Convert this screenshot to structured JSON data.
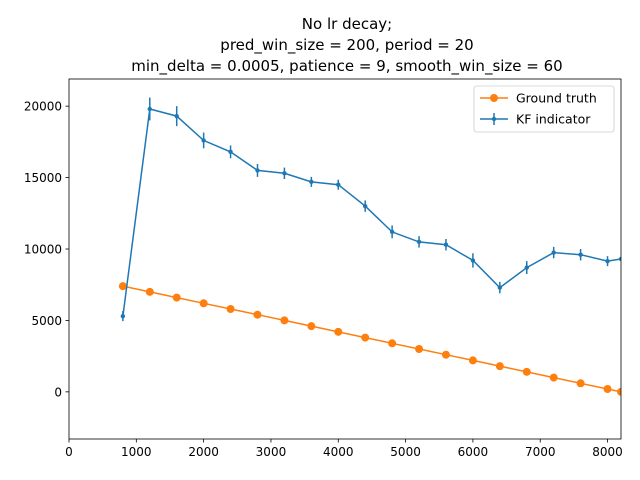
{
  "chart_data": {
    "type": "line",
    "title_lines": [
      "No lr decay;",
      "pred_win_size = 200, period = 20",
      "min_delta = 0.0005, patience = 9, smooth_win_size = 60"
    ],
    "xlabel": "",
    "ylabel": "",
    "xlim": [
      0,
      8200
    ],
    "ylim": [
      -3300,
      21900
    ],
    "xticks": [
      0,
      1000,
      2000,
      3000,
      4000,
      5000,
      6000,
      7000,
      8000
    ],
    "yticks": [
      0,
      5000,
      10000,
      15000,
      20000
    ],
    "grid": false,
    "legend_position": "top-right",
    "series": [
      {
        "name": "Ground truth",
        "color": "#ff7f0e",
        "marker": "circle",
        "x": [
          800,
          1200,
          1600,
          2000,
          2400,
          2800,
          3200,
          3600,
          4000,
          4400,
          4800,
          5200,
          5600,
          6000,
          6400,
          6800,
          7200,
          7600,
          8000,
          8200
        ],
        "y": [
          7400,
          7000,
          6600,
          6200,
          5800,
          5400,
          5000,
          4600,
          4200,
          3800,
          3400,
          3000,
          2600,
          2200,
          1800,
          1400,
          1000,
          600,
          200,
          0
        ]
      },
      {
        "name": "KF indicator",
        "color": "#1f77b4",
        "marker": "point",
        "x": [
          800,
          1200,
          1600,
          2000,
          2400,
          2800,
          3200,
          3600,
          4000,
          4400,
          4800,
          5200,
          5600,
          6000,
          6400,
          6800,
          7200,
          7600,
          8000,
          8200
        ],
        "y": [
          5300,
          19800,
          19300,
          17600,
          16800,
          15500,
          15300,
          14700,
          14500,
          13000,
          11200,
          10500,
          10300,
          9200,
          7300,
          8700,
          9750,
          9600,
          9150,
          9300
        ],
        "yerr": [
          350,
          800,
          700,
          550,
          450,
          450,
          400,
          350,
          350,
          400,
          450,
          400,
          400,
          500,
          400,
          450,
          400,
          400,
          350,
          0
        ]
      }
    ]
  }
}
